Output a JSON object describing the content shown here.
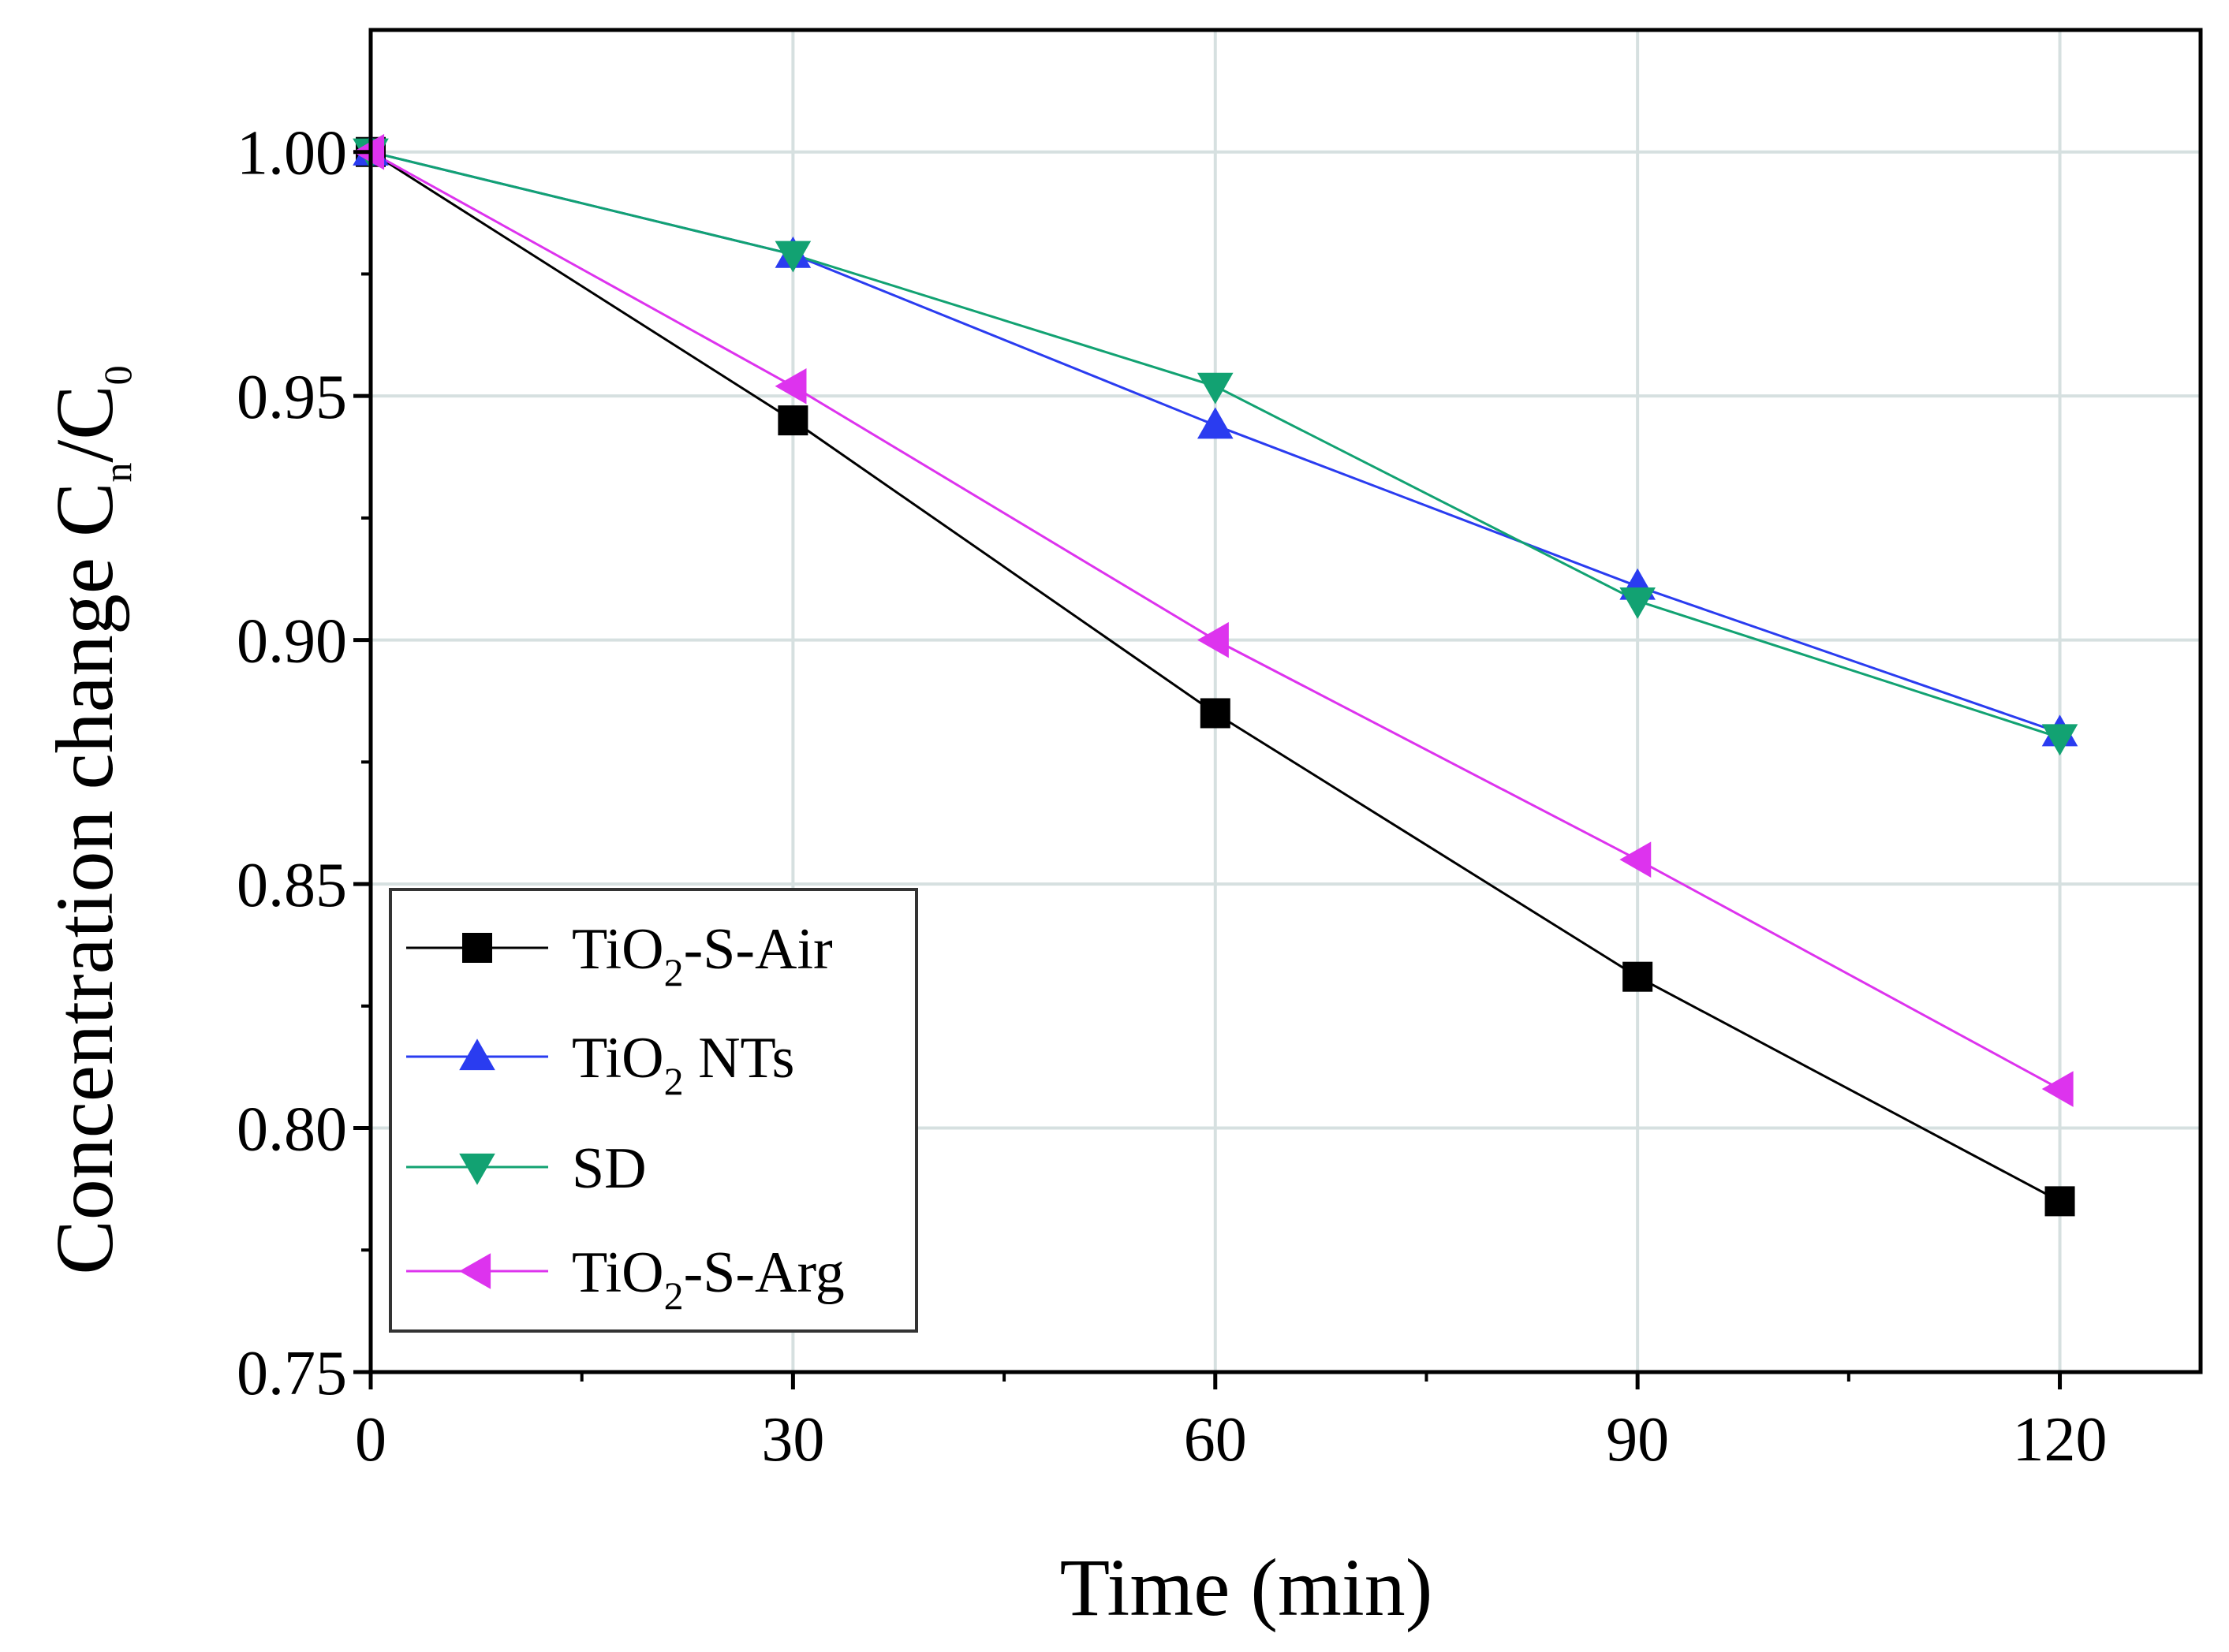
{
  "chart_data": {
    "type": "line",
    "x": [
      0,
      30,
      60,
      90,
      120
    ],
    "xlim": [
      0,
      130
    ],
    "ylim": [
      0.75,
      1.025
    ],
    "xticks": [
      "0",
      "30",
      "60",
      "90",
      "120"
    ],
    "yticks": [
      "0.75",
      "0.80",
      "0.85",
      "0.90",
      "0.95",
      "1.00"
    ],
    "xlabel": "Time (min)",
    "ylabel": {
      "main": "Concentration change C",
      "sub1": "n",
      "slash": "/C",
      "sub2": "0"
    },
    "grid": true,
    "legend_position": "bottom-left",
    "series": [
      {
        "name": "TiO2-S-Air",
        "label_parts": [
          "TiO",
          "2",
          "-S-Air"
        ],
        "color": "#000000",
        "marker": "square",
        "values": [
          1.0,
          0.945,
          0.885,
          0.831,
          0.785
        ]
      },
      {
        "name": "TiO2 NTs",
        "label_parts": [
          "TiO",
          "2",
          " NTs"
        ],
        "color": "#2a3cf0",
        "marker": "triangle-up",
        "values": [
          1.0,
          0.979,
          0.944,
          0.911,
          0.881
        ]
      },
      {
        "name": "SD",
        "label_parts": [
          "SD",
          "",
          ""
        ],
        "color": "#12a272",
        "marker": "triangle-down",
        "values": [
          1.0,
          0.979,
          0.952,
          0.908,
          0.88
        ]
      },
      {
        "name": "TiO2-S-Arg",
        "label_parts": [
          "TiO",
          "2",
          "-S-Arg"
        ],
        "color": "#dd33ee",
        "marker": "triangle-left",
        "values": [
          1.0,
          0.952,
          0.9,
          0.855,
          0.808
        ]
      }
    ]
  }
}
